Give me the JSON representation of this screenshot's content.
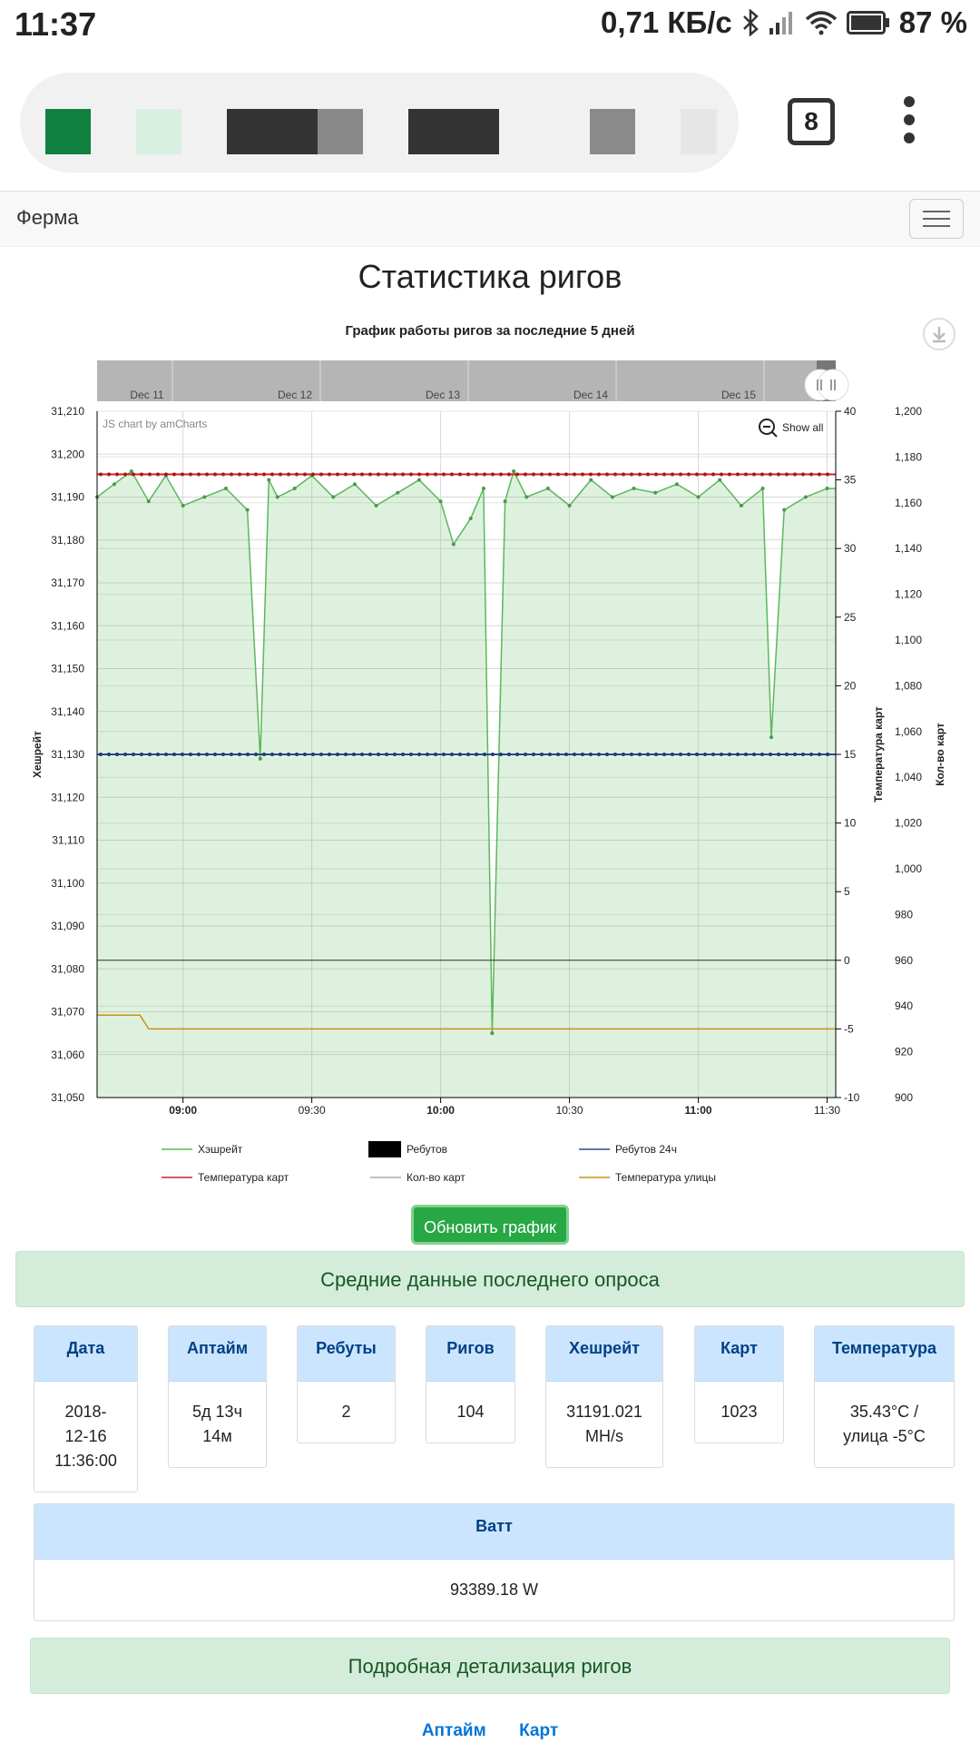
{
  "status": {
    "time": "11:37",
    "network": "0,71 КБ/с",
    "battery": "87 %"
  },
  "browser": {
    "tabs_count": "8"
  },
  "nav": {
    "brand": "Ферма"
  },
  "page": {
    "title": "Статистика ригов",
    "update_button": "Обновить график",
    "summary_header": "Средние данные последнего опроса",
    "details_header": "Подробная детализация ригов",
    "footer_links": [
      "Аптайм",
      "Карт"
    ]
  },
  "stats": [
    {
      "label": "Дата",
      "value": "2018-\n12-16\n11:36:00"
    },
    {
      "label": "Аптайм",
      "value": "5д 13ч\n14м"
    },
    {
      "label": "Ребуты",
      "value": "2"
    },
    {
      "label": "Ригов",
      "value": "104"
    },
    {
      "label": "Хешрейт",
      "value": "31191.021\nMH/s"
    },
    {
      "label": "Карт",
      "value": "1023"
    },
    {
      "label": "Температура",
      "value": "35.43°C /\nулица -5°C"
    },
    {
      "label": "Ватт",
      "value": "93389.18 W"
    }
  ],
  "chart_data": {
    "type": "line",
    "title": "График работы ригов за последние 5 дней",
    "credit": "JS chart by amCharts",
    "show_all": "Show all",
    "scrollbar_labels": [
      "Dec 11",
      "Dec 12",
      "Dec 13",
      "Dec 14",
      "Dec 15"
    ],
    "x_ticks": [
      "09:00",
      "09:30",
      "10:00",
      "10:30",
      "11:00",
      "11:30"
    ],
    "left_axis": {
      "label": "Хешрейт",
      "range": [
        31050,
        31210
      ],
      "ticks": [
        "31,210",
        "31,200",
        "31,190",
        "31,180",
        "31,170",
        "31,160",
        "31,150",
        "31,140",
        "31,130",
        "31,120",
        "31,110",
        "31,100",
        "31,090",
        "31,080",
        "31,070",
        "31,060",
        "31,050"
      ]
    },
    "right_axis_1": {
      "label": "Температура карт",
      "range": [
        -10,
        40
      ],
      "ticks": [
        "40",
        "35",
        "30",
        "25",
        "20",
        "15",
        "10",
        "5",
        "0",
        "-5",
        "-10"
      ]
    },
    "right_axis_2": {
      "label": "Кол-во карт",
      "range": [
        900,
        1200
      ],
      "ticks": [
        "1,200",
        "1,180",
        "1,160",
        "1,140",
        "1,120",
        "1,100",
        "1,080",
        "1,060",
        "1,040",
        "1,020",
        "1,000",
        "980",
        "960",
        "940",
        "920",
        "900"
      ]
    },
    "legend": [
      {
        "name": "Хэшрейт",
        "color": "#5cb85c"
      },
      {
        "name": "Ребутов",
        "color": "#000000"
      },
      {
        "name": "Ребутов 24ч",
        "color": "#2b4a8c"
      },
      {
        "name": "Температура карт",
        "color": "#cc2222"
      },
      {
        "name": "Кол-во карт",
        "color": "#aaaaaa"
      },
      {
        "name": "Температура улицы",
        "color": "#c8921a"
      }
    ],
    "series": [
      {
        "name": "Хэшрейт",
        "axis": "left",
        "x": [
          "08:40",
          "08:44",
          "08:48",
          "08:52",
          "08:56",
          "09:00",
          "09:05",
          "09:10",
          "09:15",
          "09:18",
          "09:20",
          "09:22",
          "09:26",
          "09:30",
          "09:35",
          "09:40",
          "09:45",
          "09:50",
          "09:55",
          "10:00",
          "10:03",
          "10:07",
          "10:10",
          "10:12",
          "10:15",
          "10:17",
          "10:20",
          "10:25",
          "10:30",
          "10:35",
          "10:40",
          "10:45",
          "10:50",
          "10:55",
          "11:00",
          "11:05",
          "11:10",
          "11:15",
          "11:17",
          "11:20",
          "11:25",
          "11:30"
        ],
        "values": [
          31190,
          31193,
          31196,
          31189,
          31195,
          31188,
          31190,
          31192,
          31187,
          31129,
          31194,
          31190,
          31192,
          31195,
          31190,
          31193,
          31188,
          31191,
          31194,
          31189,
          31179,
          31185,
          31192,
          31065,
          31189,
          31196,
          31190,
          31192,
          31188,
          31194,
          31190,
          31192,
          31191,
          31193,
          31190,
          31194,
          31188,
          31192,
          31134,
          31187,
          31190,
          31192
        ]
      },
      {
        "name": "Температура карт",
        "axis": "right1",
        "values_const": 35.4
      },
      {
        "name": "Ребутов 24ч",
        "axis": "right1",
        "values_const": 15
      },
      {
        "name": "Ребутов",
        "axis": "right1",
        "values_const": 0
      },
      {
        "name": "Температура улицы",
        "axis": "right1",
        "x": [
          "08:40",
          "08:50",
          "08:52",
          "11:32"
        ],
        "values": [
          -4,
          -4,
          -5,
          -5
        ]
      }
    ]
  }
}
